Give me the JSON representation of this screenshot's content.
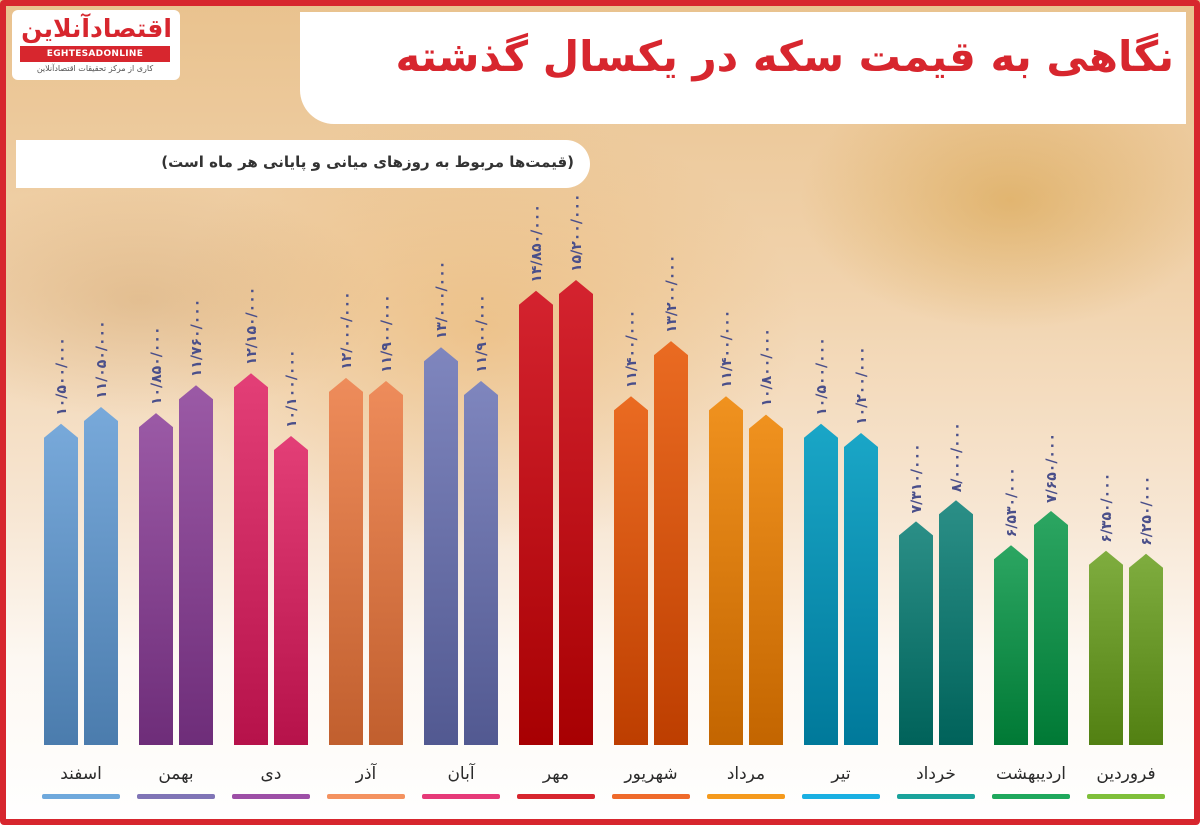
{
  "logo": {
    "brand": "اقتصادآنلاین",
    "latin": "EGHTESADONLINE",
    "tagline": "کاری از مرکز تحقیقات اقتصادآنلاین"
  },
  "header": {
    "title": "نگاهی به قیمت سکه در یکسال گذشته",
    "note": "(قیمت‌ها مربوط به روزهای میانی و پایانی هر ماه است)"
  },
  "chart_data": {
    "type": "bar",
    "title": "نگاهی به قیمت سکه در یکسال گذشته",
    "subtitle": "(قیمت‌ها مربوط به روزهای میانی و پایانی هر ماه است)",
    "ylim": [
      0,
      15200000
    ],
    "grid": false,
    "categories": [
      "فروردین",
      "اردیبهشت",
      "خرداد",
      "تیر",
      "مرداد",
      "شهریور",
      "مهر",
      "آبان",
      "آذر",
      "دی",
      "بهمن",
      "اسفند"
    ],
    "series": [
      {
        "values": [
          6350000,
          6530000,
          7310000,
          10500000,
          11400000,
          11400000,
          14850000,
          13000000,
          12000000,
          12150000,
          10850000,
          10500000
        ],
        "labels": [
          "۶/۳۵۰/۰۰۰",
          "۶/۵۳۰/۰۰۰",
          "۷/۳۱۰/۰۰۰",
          "۱۰/۵۰۰/۰۰۰",
          "۱۱/۴۰۰/۰۰۰",
          "۱۱/۴۰۰/۰۰۰",
          "۱۴/۸۵۰/۰۰۰",
          "۱۳/۰۰۰/۰۰۰",
          "۱۲/۰۰۰/۰۰۰",
          "۱۲/۱۵۰/۰۰۰",
          "۱۰/۸۵۰/۰۰۰",
          "۱۰/۵۰۰/۰۰۰"
        ]
      },
      {
        "values": [
          6250000,
          7650000,
          8000000,
          10200000,
          10800000,
          13200000,
          15200000,
          11900000,
          11900000,
          10100000,
          11760000,
          11050000
        ],
        "labels": [
          "۶/۲۵۰/۰۰۰",
          "۷/۶۵۰/۰۰۰",
          "۸/۰۰۰/۰۰۰",
          "۱۰/۲۰۰/۰۰۰",
          "۱۰/۸۰۰/۰۰۰",
          "۱۳/۲۰۰/۰۰۰",
          "۱۵/۲۰۰/۰۰۰",
          "۱۱/۹۰۰/۰۰۰",
          "۱۱/۹۰۰/۰۰۰",
          "۱۰/۱۰۰/۰۰۰",
          "۱۱/۷۶۰/۰۰۰",
          "۱۱/۰۵۰/۰۰۰"
        ]
      }
    ],
    "colors": [
      "#7fad3f",
      "#2ca662",
      "#2b8f87",
      "#1aa6c7",
      "#f0921f",
      "#ea6b22",
      "#d4232f",
      "#7f86be",
      "#ee8c5b",
      "#e33f77",
      "#9b5aa6",
      "#78a9da"
    ],
    "underline_colors": [
      "#7fbf3a",
      "#1fa85c",
      "#1aa39b",
      "#1ab0e2",
      "#f59a1c",
      "#ef6a2a",
      "#d7262e",
      "#e63a78",
      "#f4925f",
      "#9d4fa6",
      "#8075b6",
      "#6fa9dc"
    ]
  }
}
